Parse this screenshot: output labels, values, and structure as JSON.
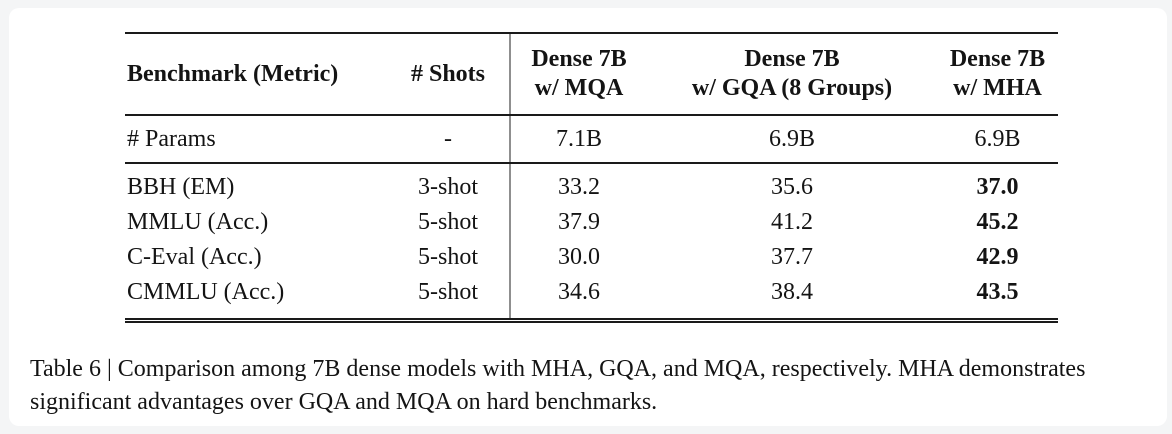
{
  "colors": {
    "page_background": "#f4f5f6",
    "card_background": "#ffffff",
    "rule": "#1a1a1a",
    "vertical_rule": "#8f8f8f",
    "text": "#141414"
  },
  "table": {
    "header": {
      "benchmark": "Benchmark (Metric)",
      "shots": "# Shots",
      "mqa": {
        "line1": "Dense 7B",
        "line2": "w/ MQA"
      },
      "gqa": {
        "line1": "Dense 7B",
        "line2": "w/ GQA (8 Groups)"
      },
      "mha": {
        "line1": "Dense 7B",
        "line2": "w/ MHA"
      }
    },
    "params_row": {
      "benchmark": "# Params",
      "shots": "-",
      "mqa": "7.1B",
      "gqa": "6.9B",
      "mha": "6.9B"
    },
    "rows": [
      {
        "benchmark": "BBH (EM)",
        "shots": "3-shot",
        "mqa": "33.2",
        "gqa": "35.6",
        "mha": "37.0"
      },
      {
        "benchmark": "MMLU (Acc.)",
        "shots": "5-shot",
        "mqa": "37.9",
        "gqa": "41.2",
        "mha": "45.2"
      },
      {
        "benchmark": "C-Eval (Acc.)",
        "shots": "5-shot",
        "mqa": "30.0",
        "gqa": "37.7",
        "mha": "42.9"
      },
      {
        "benchmark": "CMMLU (Acc.)",
        "shots": "5-shot",
        "mqa": "34.6",
        "gqa": "38.4",
        "mha": "43.5"
      }
    ]
  },
  "caption": {
    "text": "Table 6 | Comparison among 7B dense models with MHA, GQA, and MQA, respectively. MHA demonstrates significant advantages over GQA and MQA on hard benchmarks."
  }
}
